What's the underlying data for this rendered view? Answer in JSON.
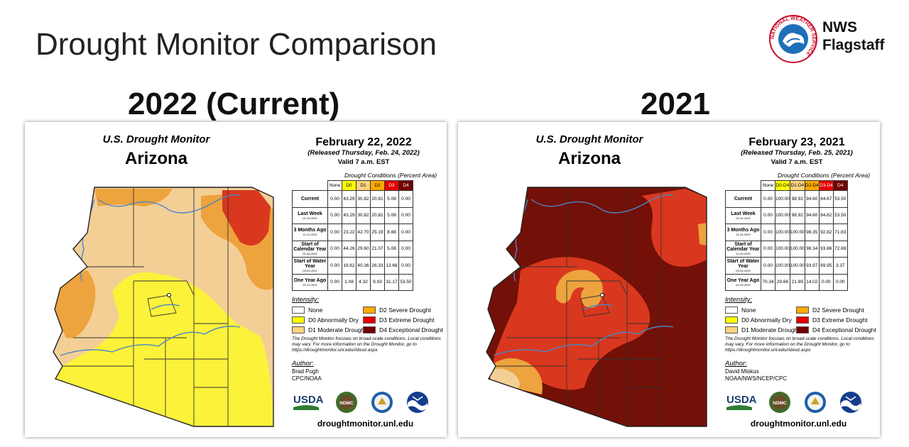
{
  "slide": {
    "title": "Drought Monitor Comparison",
    "org_line1": "NWS",
    "org_line2": "Flagstaff",
    "logo_ring_text": "NATIONAL WEATHER SERVICE"
  },
  "colors": {
    "None": "#ffffff",
    "D0": "#ffff00",
    "D1": "#fcd37f",
    "D2": "#ffaa00",
    "D3": "#e60000",
    "D4": "#730000",
    "map_D0": "#fcf23a",
    "map_D1": "#f3cf96",
    "map_D2": "#eda33e",
    "map_D3": "#d9381e",
    "map_D4": "#731007",
    "river": "#4a86c8"
  },
  "panels": [
    {
      "heading": "2022 (Current)",
      "map_title_line1": "U.S. Drought Monitor",
      "map_title_line2": "Arizona",
      "date": "February 22, 2022",
      "released": "(Released Thursday, Feb. 24, 2022)",
      "valid": "Valid 7 a.m. EST",
      "conditions_title": "Drought Conditions (Percent Area)",
      "columns": [
        "None",
        "D0",
        "D1",
        "D2",
        "D3",
        "D4"
      ],
      "column_colors": [
        "#ffffff",
        "#ffff00",
        "#fcd37f",
        "#ffaa00",
        "#e60000",
        "#730000"
      ],
      "column_text_colors": [
        "#000",
        "#000",
        "#000",
        "#000",
        "#fff",
        "#fff"
      ],
      "rows": [
        {
          "label": "Current",
          "sub": "",
          "values": [
            "0.00",
            "43.29",
            "30.82",
            "20.81",
            "5.08",
            "0.00"
          ]
        },
        {
          "label": "Last Week",
          "sub": "02-15-2022",
          "values": [
            "0.00",
            "43.29",
            "30.82",
            "20.81",
            "5.08",
            "0.00"
          ]
        },
        {
          "label": "3 Months Ago",
          "sub": "11-23-2021",
          "values": [
            "0.00",
            "23.22",
            "42.70",
            "25.19",
            "8.88",
            "0.00"
          ]
        },
        {
          "label": "Start of Calendar Year",
          "sub": "01-04-2022",
          "values": [
            "0.00",
            "44.26",
            "29.60",
            "21.07",
            "5.08",
            "0.00"
          ]
        },
        {
          "label": "Start of Water Year",
          "sub": "09-28-2021",
          "values": [
            "0.00",
            "19.62",
            "40.36",
            "26.33",
            "13.68",
            "0.00"
          ]
        },
        {
          "label": "One Year Ago",
          "sub": "02-23-2021",
          "values": [
            "0.00",
            "1.08",
            "4.32",
            "9.93",
            "31.17",
            "53.50"
          ]
        }
      ],
      "intensity_label": "Intensity:",
      "legend": [
        {
          "label": "None",
          "color": "#ffffff"
        },
        {
          "label": "D0 Abnormally Dry",
          "color": "#ffff00"
        },
        {
          "label": "D1 Moderate Drought",
          "color": "#fcd37f"
        },
        {
          "label": "D2 Severe Drought",
          "color": "#ffaa00"
        },
        {
          "label": "D3 Extreme Drought",
          "color": "#e60000"
        },
        {
          "label": "D4 Exceptional Drought",
          "color": "#730000"
        }
      ],
      "note": "The Drought Monitor focuses on broad-scale conditions. Local conditions may vary. For more information on the Drought Monitor, go to https://droughtmonitor.unl.edu/About.aspx",
      "author_label": "Author:",
      "author_name": "Brad Pugh",
      "author_org": "CPC/NOAA",
      "logo_usda": "USDA",
      "logo_ndmc": "NDMC",
      "website": "droughtmonitor.unl.edu",
      "map_dominant": "D0"
    },
    {
      "heading": "2021",
      "map_title_line1": "U.S. Drought Monitor",
      "map_title_line2": "Arizona",
      "date": "February 23, 2021",
      "released": "(Released Thursday, Feb. 25, 2021)",
      "valid": "Valid 7 a.m. EST",
      "conditions_title": "Drought Conditions (Percent Area)",
      "columns": [
        "None",
        "D0-D4",
        "D1-D4",
        "D2-D4",
        "D3-D4",
        "D4"
      ],
      "column_colors": [
        "#ffffff",
        "#ffff00",
        "#fcd37f",
        "#ffaa00",
        "#e60000",
        "#730000"
      ],
      "column_text_colors": [
        "#000",
        "#000",
        "#000",
        "#000",
        "#fff",
        "#fff"
      ],
      "rows": [
        {
          "label": "Current",
          "sub": "",
          "values": [
            "0.00",
            "100.00",
            "98.92",
            "94.60",
            "84.67",
            "53.50"
          ]
        },
        {
          "label": "Last Week",
          "sub": "02-16-2021",
          "values": [
            "0.00",
            "100.00",
            "98.92",
            "94.60",
            "84.62",
            "53.50"
          ]
        },
        {
          "label": "3 Months Ago",
          "sub": "11-24-2020",
          "values": [
            "0.00",
            "100.00",
            "100.00",
            "98.35",
            "92.82",
            "71.83"
          ]
        },
        {
          "label": "Start of Calendar Year",
          "sub": "12-29-2020",
          "values": [
            "0.00",
            "100.00",
            "100.00",
            "98.34",
            "93.86",
            "72.69"
          ]
        },
        {
          "label": "Start of Water Year",
          "sub": "09-29-2020",
          "values": [
            "0.00",
            "100.00",
            "100.00",
            "93.97",
            "69.95",
            "3.37"
          ]
        },
        {
          "label": "One Year Ago",
          "sub": "02-25-2020",
          "values": [
            "70.34",
            "29.66",
            "21.89",
            "14.02",
            "0.00",
            "0.00"
          ]
        }
      ],
      "intensity_label": "Intensity:",
      "legend": [
        {
          "label": "None",
          "color": "#ffffff"
        },
        {
          "label": "D0 Abnormally Dry",
          "color": "#ffff00"
        },
        {
          "label": "D1 Moderate Drought",
          "color": "#fcd37f"
        },
        {
          "label": "D2 Severe Drought",
          "color": "#ffaa00"
        },
        {
          "label": "D3 Extreme Drought",
          "color": "#e60000"
        },
        {
          "label": "D4 Exceptional Drought",
          "color": "#730000"
        }
      ],
      "note": "The Drought Monitor focuses on broad-scale conditions. Local conditions may vary. For more information on the Drought Monitor, go to https://droughtmonitor.unl.edu/About.aspx",
      "author_label": "Author:",
      "author_name": "David Miskus",
      "author_org": "NOAA/NWS/NCEP/CPC",
      "logo_usda": "USDA",
      "logo_ndmc": "NDMC",
      "website": "droughtmonitor.unl.edu",
      "map_dominant": "D4"
    }
  ]
}
